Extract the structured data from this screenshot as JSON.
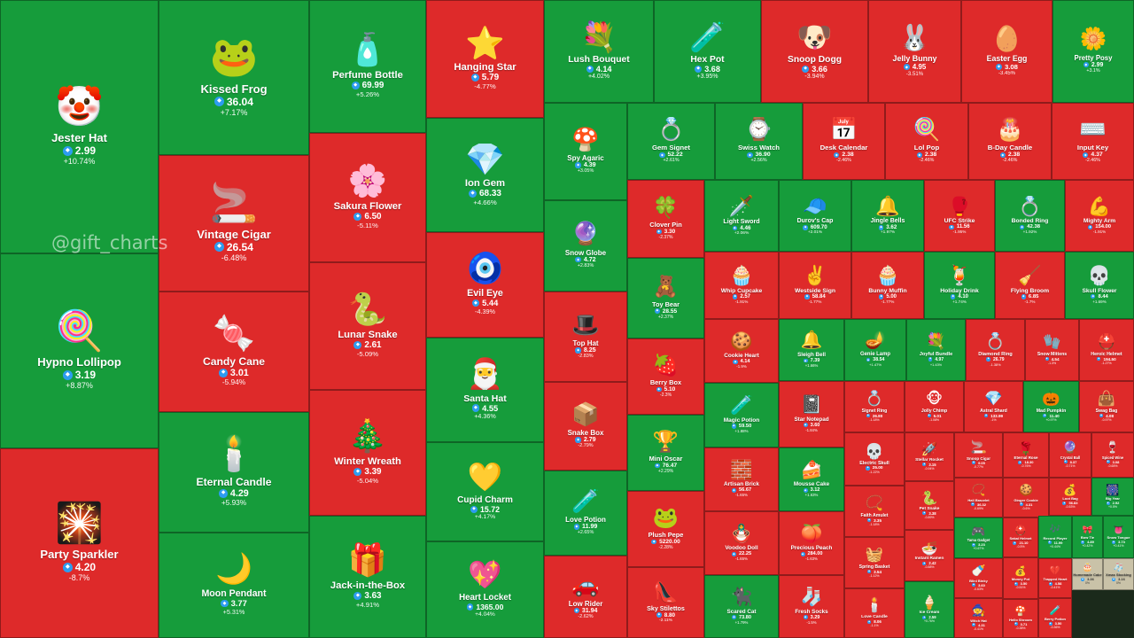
{
  "watermark": "@gift_charts",
  "currency_icon": "ton-diamond-icon",
  "colors": {
    "up": "#169c3b",
    "down": "#de2a2a",
    "flat": "#c9c2a8"
  },
  "chart_data": {
    "type": "treemap",
    "cells": [
      {
        "name": "Jester Hat",
        "icon": "🤡",
        "value": "2.99",
        "change": "+10.74%",
        "dir": "up"
      },
      {
        "name": "Hypno Lollipop",
        "icon": "🍭",
        "value": "3.19",
        "change": "+8.87%",
        "dir": "up"
      },
      {
        "name": "Party Sparkler",
        "icon": "🎇",
        "value": "4.20",
        "change": "-8.7%",
        "dir": "down"
      },
      {
        "name": "Kissed Frog",
        "icon": "🐸",
        "value": "36.04",
        "change": "+7.17%",
        "dir": "up"
      },
      {
        "name": "Vintage Cigar",
        "icon": "🚬",
        "value": "26.54",
        "change": "-6.48%",
        "dir": "down"
      },
      {
        "name": "Candy Cane",
        "icon": "🍬",
        "value": "3.01",
        "change": "-5.94%",
        "dir": "down"
      },
      {
        "name": "Eternal Candle",
        "icon": "🕯️",
        "value": "4.29",
        "change": "+5.93%",
        "dir": "up"
      },
      {
        "name": "Moon Pendant",
        "icon": "🌙",
        "value": "3.77",
        "change": "+5.31%",
        "dir": "up"
      },
      {
        "name": "Perfume Bottle",
        "icon": "🧴",
        "value": "69.99",
        "change": "+5.26%",
        "dir": "up"
      },
      {
        "name": "Sakura Flower",
        "icon": "🌸",
        "value": "6.50",
        "change": "-5.11%",
        "dir": "down"
      },
      {
        "name": "Lunar Snake",
        "icon": "🐍",
        "value": "2.61",
        "change": "-5.09%",
        "dir": "down"
      },
      {
        "name": "Winter Wreath",
        "icon": "🎄",
        "value": "3.39",
        "change": "-5.04%",
        "dir": "down"
      },
      {
        "name": "Jack-in-the-Box",
        "icon": "🎁",
        "value": "3.63",
        "change": "+4.91%",
        "dir": "up"
      },
      {
        "name": "Hanging Star",
        "icon": "⭐",
        "value": "5.79",
        "change": "-4.77%",
        "dir": "down"
      },
      {
        "name": "Ion Gem",
        "icon": "💎",
        "value": "68.33",
        "change": "+4.66%",
        "dir": "up"
      },
      {
        "name": "Evil Eye",
        "icon": "🧿",
        "value": "5.44",
        "change": "-4.39%",
        "dir": "down"
      },
      {
        "name": "Santa Hat",
        "icon": "🎅",
        "value": "4.55",
        "change": "+4.36%",
        "dir": "up"
      },
      {
        "name": "Cupid Charm",
        "icon": "💛",
        "value": "15.72",
        "change": "+4.17%",
        "dir": "up"
      },
      {
        "name": "Heart Locket",
        "icon": "💖",
        "value": "1365.00",
        "change": "+4.04%",
        "dir": "up"
      },
      {
        "name": "Lush Bouquet",
        "icon": "💐",
        "value": "4.14",
        "change": "+4.02%",
        "dir": "up"
      },
      {
        "name": "Hex Pot",
        "icon": "🧪",
        "value": "3.68",
        "change": "+3.95%",
        "dir": "up"
      },
      {
        "name": "Snoop Dogg",
        "icon": "🐶",
        "value": "3.66",
        "change": "-3.94%",
        "dir": "down"
      },
      {
        "name": "Jelly Bunny",
        "icon": "🐰",
        "value": "4.95",
        "change": "-3.51%",
        "dir": "down"
      },
      {
        "name": "Easter Egg",
        "icon": "🥚",
        "value": "3.08",
        "change": "-3.45%",
        "dir": "down"
      },
      {
        "name": "Pretty Posy",
        "icon": "🌼",
        "value": "2.99",
        "change": "+3.1%",
        "dir": "up"
      },
      {
        "name": "Spy Agaric",
        "icon": "🍄",
        "value": "4.39",
        "change": "+3.05%",
        "dir": "up"
      },
      {
        "name": "Snow Globe",
        "icon": "🔮",
        "value": "4.72",
        "change": "+2.83%",
        "dir": "up"
      },
      {
        "name": "Top Hat",
        "icon": "🎩",
        "value": "8.25",
        "change": "-2.83%",
        "dir": "down"
      },
      {
        "name": "Snake Box",
        "icon": "📦",
        "value": "2.79",
        "change": "-2.79%",
        "dir": "down"
      },
      {
        "name": "Love Potion",
        "icon": "🧪",
        "value": "11.99",
        "change": "+2.65%",
        "dir": "up"
      },
      {
        "name": "Low Rider",
        "icon": "🚗",
        "value": "31.94",
        "change": "-2.62%",
        "dir": "down"
      },
      {
        "name": "Gem Signet",
        "icon": "💍",
        "value": "52.22",
        "change": "+2.61%",
        "dir": "up"
      },
      {
        "name": "Swiss Watch",
        "icon": "⌚",
        "value": "36.90",
        "change": "+2.56%",
        "dir": "up"
      },
      {
        "name": "Desk Calendar",
        "icon": "📅",
        "value": "2.38",
        "change": "-2.46%",
        "dir": "down"
      },
      {
        "name": "Lol Pop",
        "icon": "🍭",
        "value": "2.38",
        "change": "-2.46%",
        "dir": "down"
      },
      {
        "name": "B-Day Candle",
        "icon": "🎂",
        "value": "2.38",
        "change": "-2.46%",
        "dir": "down"
      },
      {
        "name": "Input Key",
        "icon": "⌨️",
        "value": "4.37",
        "change": "-2.46%",
        "dir": "down"
      },
      {
        "name": "Clover Pin",
        "icon": "🍀",
        "value": "3.30",
        "change": "-2.37%",
        "dir": "down"
      },
      {
        "name": "Toy Bear",
        "icon": "🧸",
        "value": "28.55",
        "change": "+2.37%",
        "dir": "up"
      },
      {
        "name": "Berry Box",
        "icon": "🍓",
        "value": "5.10",
        "change": "-2.3%",
        "dir": "down"
      },
      {
        "name": "Mini Oscar",
        "icon": "🏆",
        "value": "76.47",
        "change": "+2.29%",
        "dir": "up"
      },
      {
        "name": "Plush Pepe",
        "icon": "🐸",
        "value": "5220.00",
        "change": "-2.28%",
        "dir": "down"
      },
      {
        "name": "Sky Stilettos",
        "icon": "👠",
        "value": "8.80",
        "change": "-2.11%",
        "dir": "down"
      },
      {
        "name": "Light Sword",
        "icon": "🗡️",
        "value": "4.46",
        "change": "+2.06%",
        "dir": "up"
      },
      {
        "name": "Durov's Cap",
        "icon": "🧢",
        "value": "609.70",
        "change": "+2.01%",
        "dir": "up"
      },
      {
        "name": "Jingle Bells",
        "icon": "🔔",
        "value": "3.62",
        "change": "+1.97%",
        "dir": "up"
      },
      {
        "name": "UFC Strike",
        "icon": "🥊",
        "value": "11.56",
        "change": "-1.95%",
        "dir": "down"
      },
      {
        "name": "Bonded Ring",
        "icon": "💍",
        "value": "42.38",
        "change": "+1.92%",
        "dir": "up"
      },
      {
        "name": "Mighty Arm",
        "icon": "💪",
        "value": "154.00",
        "change": "-1.91%",
        "dir": "down"
      },
      {
        "name": "Whip Cupcake",
        "icon": "🧁",
        "value": "2.57",
        "change": "-1.91%",
        "dir": "down"
      },
      {
        "name": "Westside Sign",
        "icon": "✌️",
        "value": "58.84",
        "change": "-1.77%",
        "dir": "down"
      },
      {
        "name": "Bunny Muffin",
        "icon": "🧁",
        "value": "5.00",
        "change": "-1.77%",
        "dir": "down"
      },
      {
        "name": "Holiday Drink",
        "icon": "🍹",
        "value": "4.10",
        "change": "+1.74%",
        "dir": "up"
      },
      {
        "name": "Flying Broom",
        "icon": "🧹",
        "value": "6.85",
        "change": "-1.7%",
        "dir": "down"
      },
      {
        "name": "Skull Flower",
        "icon": "💀",
        "value": "8.44",
        "change": "+1.69%",
        "dir": "up"
      },
      {
        "name": "Cookie Heart",
        "icon": "🍪",
        "value": "4.14",
        "change": "-1.9%",
        "dir": "down"
      },
      {
        "name": "Sleigh Bell",
        "icon": "🔔",
        "value": "7.39",
        "change": "+1.66%",
        "dir": "up"
      },
      {
        "name": "Genie Lamp",
        "icon": "🪔",
        "value": "38.54",
        "change": "+1.47%",
        "dir": "up"
      },
      {
        "name": "Joyful Bundle",
        "icon": "💐",
        "value": "4.97",
        "change": "+1.43%",
        "dir": "up"
      },
      {
        "name": "Diamond Ring",
        "icon": "💍",
        "value": "26.79",
        "change": "-1.38%",
        "dir": "down"
      },
      {
        "name": "Snow Mittens",
        "icon": "🧤",
        "value": "4.54",
        "change": "-1.3%",
        "dir": "down"
      },
      {
        "name": "Heroic Helmet",
        "icon": "⛑️",
        "value": "194.50",
        "change": "-1.27%",
        "dir": "down"
      },
      {
        "name": "Magic Potion",
        "icon": "🧪",
        "value": "59.50",
        "change": "+1.88%",
        "dir": "up"
      },
      {
        "name": "Star Notepad",
        "icon": "📓",
        "value": "3.60",
        "change": "-1.84%",
        "dir": "down"
      },
      {
        "name": "Signet Ring",
        "icon": "💍",
        "value": "26.80",
        "change": "-1.18%",
        "dir": "down"
      },
      {
        "name": "Jolly Chimp",
        "icon": "🐵",
        "value": "5.01",
        "change": "-1.08%",
        "dir": "down"
      },
      {
        "name": "Astral Shard",
        "icon": "💎",
        "value": "133.99",
        "change": "-1%",
        "dir": "down"
      },
      {
        "name": "Mad Pumpkin",
        "icon": "🎃",
        "value": "11.40",
        "change": "+0.97%",
        "dir": "up"
      },
      {
        "name": "Swag Bag",
        "icon": "👜",
        "value": "4.08",
        "change": "-0.97%",
        "dir": "down"
      },
      {
        "name": "Artisan Brick",
        "icon": "🧱",
        "value": "56.67",
        "change": "-1.65%",
        "dir": "down"
      },
      {
        "name": "Mousse Cake",
        "icon": "🍰",
        "value": "3.12",
        "change": "+1.63%",
        "dir": "up"
      },
      {
        "name": "Electric Skull",
        "icon": "💀",
        "value": "25.00",
        "change": "-1.22%",
        "dir": "down"
      },
      {
        "name": "Stellar Rocket",
        "icon": "🚀",
        "value": "3.15",
        "change": "-0.94%",
        "dir": "down"
      },
      {
        "name": "Snoop Cigar",
        "icon": "🚬",
        "value": "9.05",
        "change": "-0.77%",
        "dir": "down"
      },
      {
        "name": "Eternal Rose",
        "icon": "🌹",
        "value": "18.30",
        "change": "-0.76%",
        "dir": "down"
      },
      {
        "name": "Crystal Ball",
        "icon": "🔮",
        "value": "8.37",
        "change": "-0.71%",
        "dir": "down"
      },
      {
        "name": "Spiced Wine",
        "icon": "🍷",
        "value": "3.08",
        "change": "-0.65%",
        "dir": "down"
      },
      {
        "name": "Voodoo Doll",
        "icon": "🪆",
        "value": "22.25",
        "change": "-1.65%",
        "dir": "down"
      },
      {
        "name": "Precious Peach",
        "icon": "🍑",
        "value": "284.00",
        "change": "-1.63%",
        "dir": "down"
      },
      {
        "name": "Faith Amulet",
        "icon": "📿",
        "value": "3.35",
        "change": "-1.18%",
        "dir": "down"
      },
      {
        "name": "Pet Snake",
        "icon": "🐍",
        "value": "3.38",
        "change": "-0.89%",
        "dir": "down"
      },
      {
        "name": "Hall Bracelet",
        "icon": "📿",
        "value": "36.32",
        "change": "-0.69%",
        "dir": "down"
      },
      {
        "name": "Ginger Cookie",
        "icon": "🍪",
        "value": "4.31",
        "change": "-0.6%",
        "dir": "down"
      },
      {
        "name": "Loot Bag",
        "icon": "💰",
        "value": "56.83",
        "change": "-0.53%",
        "dir": "down"
      },
      {
        "name": "Big Year",
        "icon": "🎆",
        "value": "2.92",
        "change": "+0.5%",
        "dir": "up"
      },
      {
        "name": "Spring Basket",
        "icon": "🧺",
        "value": "3.54",
        "change": "-1.12%",
        "dir": "down"
      },
      {
        "name": "Instant Ramen",
        "icon": "🍜",
        "value": "2.42",
        "change": "-0.88%",
        "dir": "down"
      },
      {
        "name": "Tama Gadget",
        "icon": "🎮",
        "value": "3.23",
        "change": "+0.67%",
        "dir": "up"
      },
      {
        "name": "Sakai Helmet",
        "icon": "⛑️",
        "value": "21.10",
        "change": "-0.5%",
        "dir": "down"
      },
      {
        "name": "Record Player",
        "icon": "🎶",
        "value": "11.99",
        "change": "+0.44%",
        "dir": "up"
      },
      {
        "name": "Bow Tie",
        "icon": "🎀",
        "value": "4.89",
        "change": "+0.42%",
        "dir": "up"
      },
      {
        "name": "Snow Tongue",
        "icon": "👅",
        "value": "3.73",
        "change": "+0.41%",
        "dir": "up"
      },
      {
        "name": "Blini Binky",
        "icon": "🍼",
        "value": "3.60",
        "change": "-0.63%",
        "dir": "down"
      },
      {
        "name": "Money Pot",
        "icon": "💰",
        "value": "3.50",
        "change": "-0.51%",
        "dir": "down"
      },
      {
        "name": "Trapped Heart",
        "icon": "💔",
        "value": "4.58",
        "change": "-0.41%",
        "dir": "down"
      },
      {
        "name": "Homemade Cake",
        "icon": "🎂",
        "value": "3.36",
        "change": "0%",
        "dir": "flat"
      },
      {
        "name": "Xmas Stocking",
        "icon": "🧦",
        "value": "3.16",
        "change": "0%",
        "dir": "flat"
      },
      {
        "name": "Witch Hat",
        "icon": "🧙",
        "value": "4.31",
        "change": "-0.41%",
        "dir": "down"
      },
      {
        "name": "Hello Shroom",
        "icon": "🍄",
        "value": "3.71",
        "change": "-0.38%",
        "dir": "down"
      },
      {
        "name": "Berry Potion",
        "icon": "🧪",
        "value": "3.50",
        "change": "-0.36%",
        "dir": "down"
      },
      {
        "name": "Love Candle",
        "icon": "🕯️",
        "value": "8.06",
        "change": "-1.1%",
        "dir": "down"
      },
      {
        "name": "Ice Cream",
        "icon": "🍦",
        "value": "2.59",
        "change": "+0.76%",
        "dir": "up"
      },
      {
        "name": "Scared Cat",
        "icon": "🐈‍⬛",
        "value": "73.80",
        "change": "+1.79%",
        "dir": "up"
      },
      {
        "name": "Fresh Socks",
        "icon": "🧦",
        "value": "3.29",
        "change": "-1.5%",
        "dir": "down"
      }
    ]
  }
}
